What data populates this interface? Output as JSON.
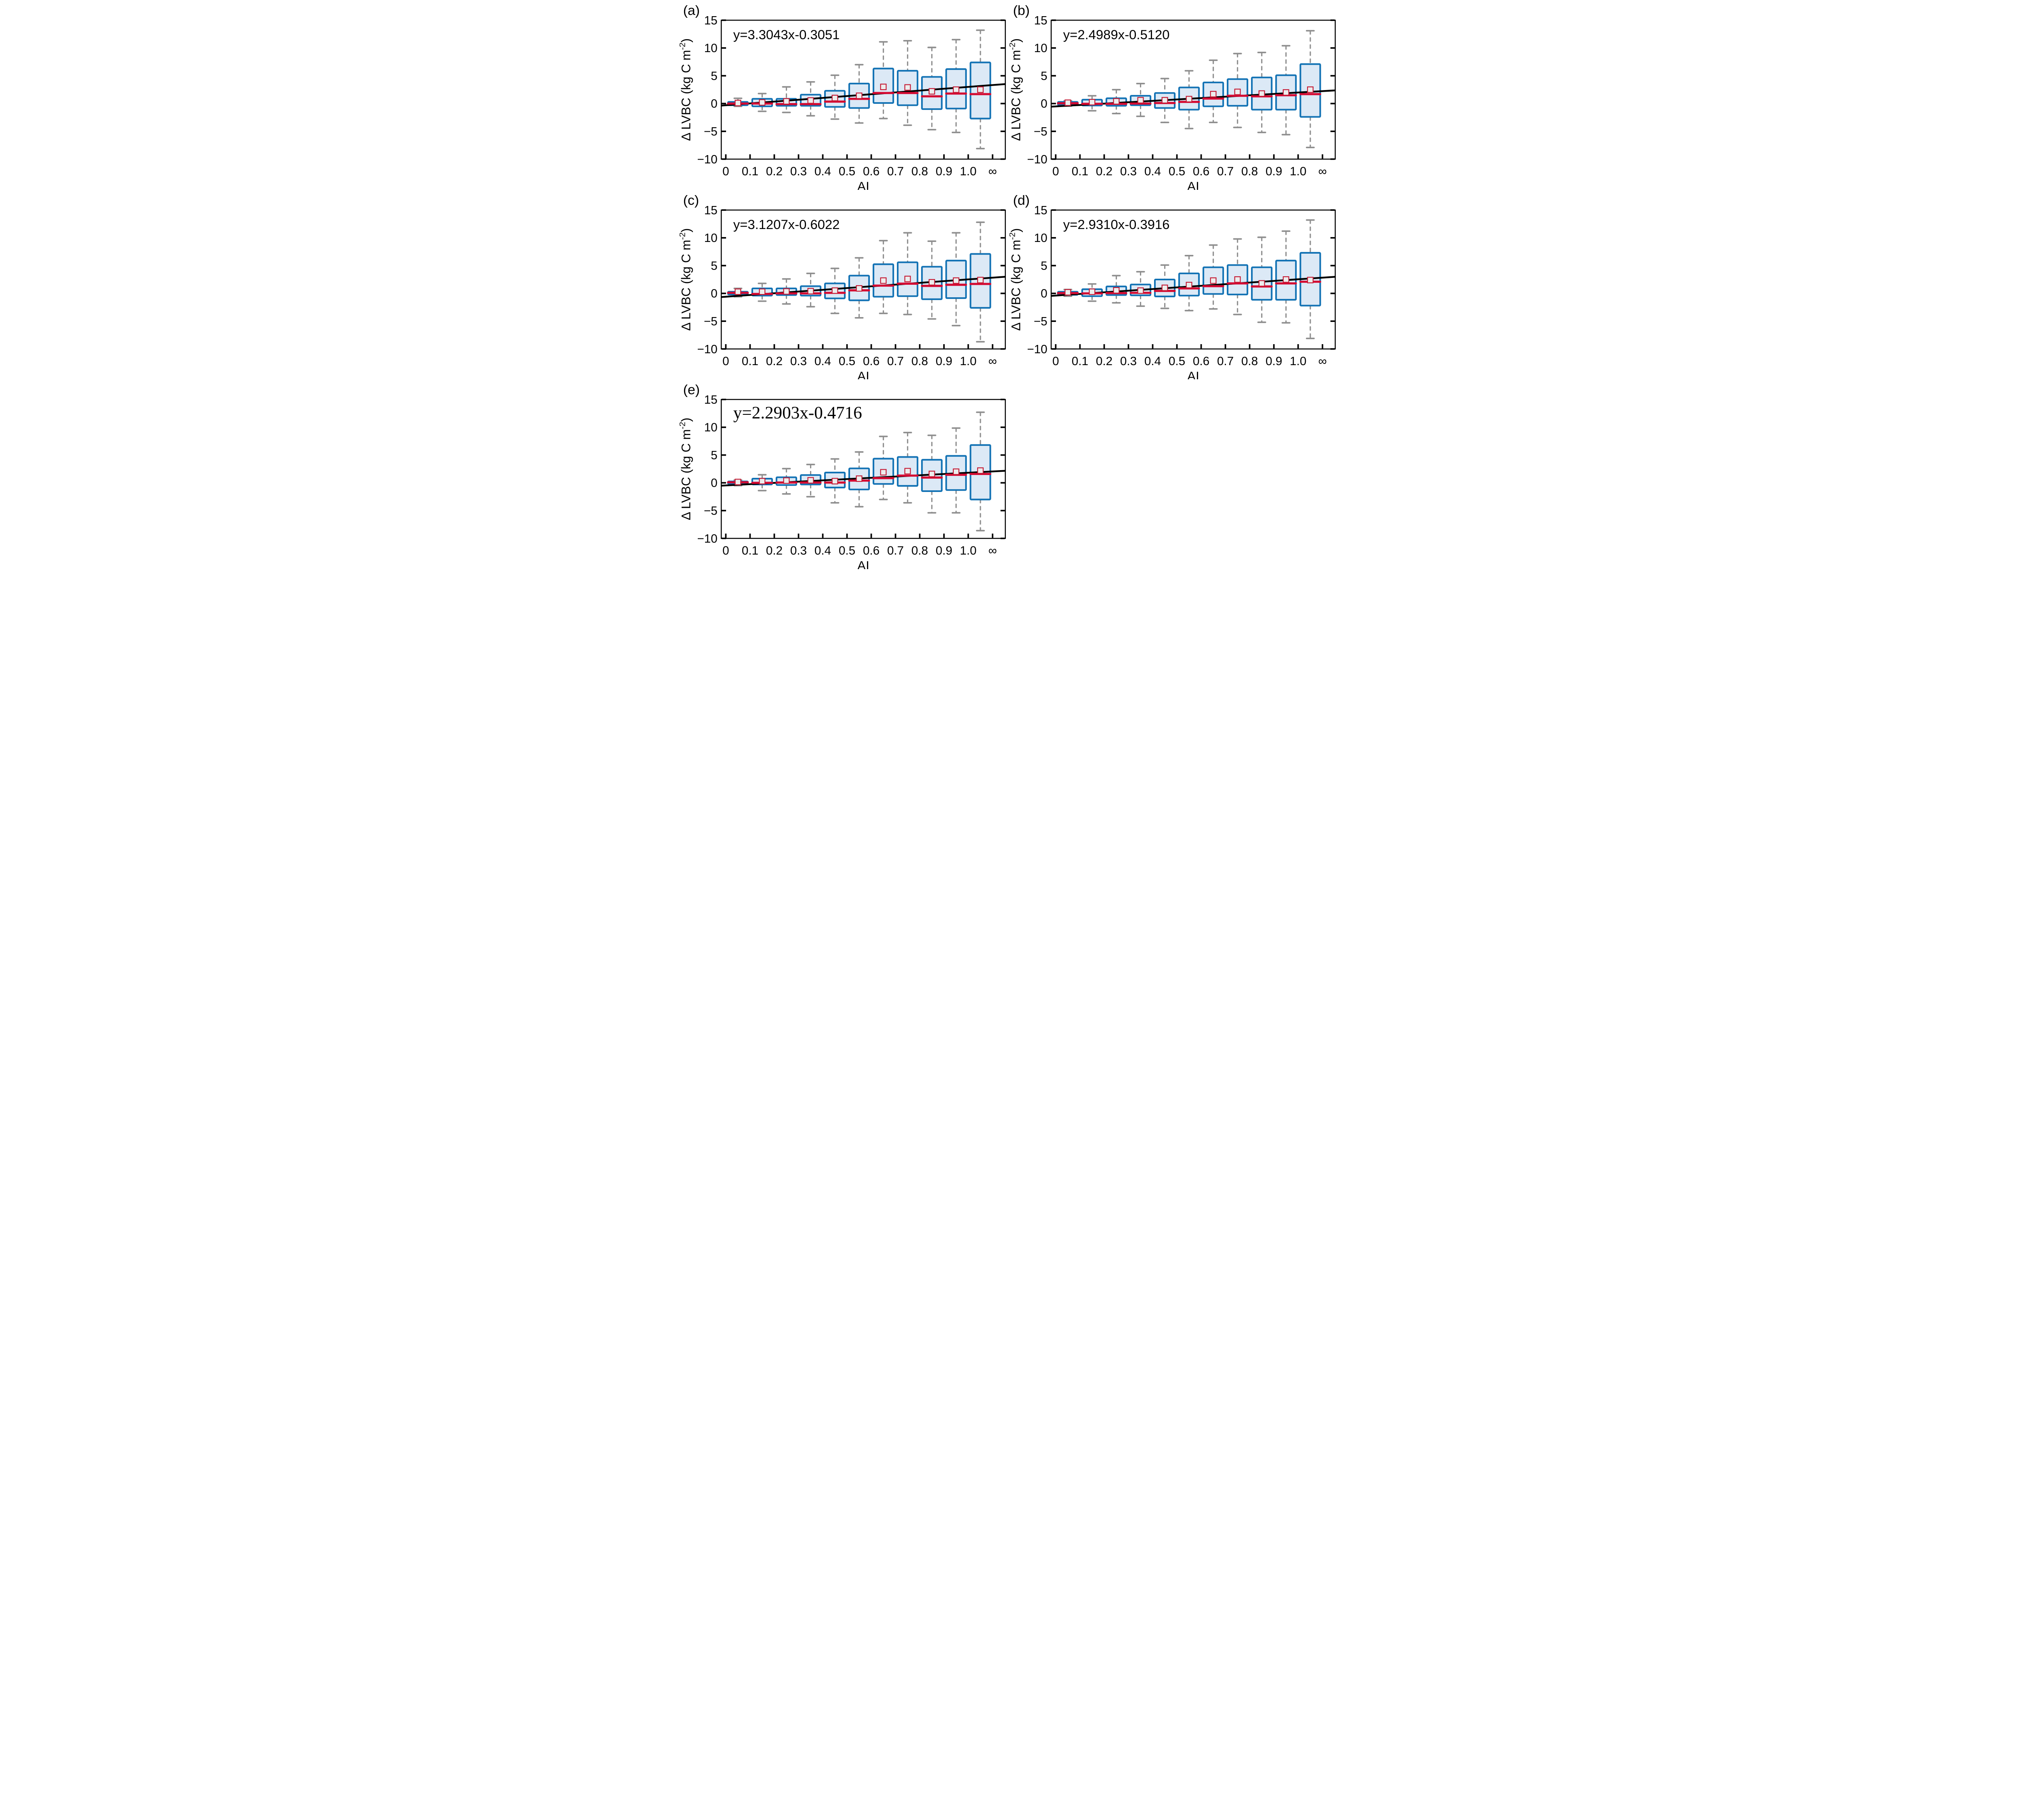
{
  "figure_title": "",
  "axes": {
    "xlabel": "AI",
    "ylabel_prefix": "Δ LVBC (kg C m",
    "ylabel_superscript": "-2",
    "ylabel_suffix": ")",
    "ylim": [
      -10,
      15
    ],
    "ytick_values": [
      15,
      10,
      5,
      0,
      -5,
      -10
    ],
    "ytick_labels": [
      "15",
      "10",
      "5",
      "0",
      "−5",
      "−10"
    ],
    "xtick_labels": [
      "0",
      "0.1",
      "0.2",
      "0.3",
      "0.4",
      "0.5",
      "0.6",
      "0.7",
      "0.8",
      "0.9",
      "1.0",
      "∞"
    ]
  },
  "colors": {
    "box_fill": "#dce9f6",
    "box_border": "#1272b4",
    "median": "#d40a32",
    "mean_fill": "#ededed",
    "mean_border": "#c41832",
    "whisker": "#8e8e8e",
    "regression_line": "#000000",
    "frame": "#000000",
    "text": "#000000"
  },
  "chart_data": [
    {
      "type": "box",
      "panel_label": "(a)",
      "equation": "y=3.3043x-0.3051",
      "equation_font": "sans",
      "regression": {
        "slope": 3.3043,
        "intercept": -0.3051
      },
      "xlabel": "AI",
      "ylabel": "Δ LVBC (kg C m⁻²)",
      "ylim": [
        -10,
        15
      ],
      "categories": [
        "0.05",
        "0.15",
        "0.25",
        "0.35",
        "0.45",
        "0.55",
        "0.65",
        "0.75",
        "0.85",
        "0.95",
        "∞"
      ],
      "boxes": [
        {
          "x": "0.05",
          "low": -0.5,
          "q1": -0.3,
          "median": 0.0,
          "q3": 0.3,
          "high": 0.95,
          "mean": 0.1
        },
        {
          "x": "0.15",
          "low": -1.4,
          "q1": -0.5,
          "median": 0.0,
          "q3": 0.85,
          "high": 1.8,
          "mean": 0.2
        },
        {
          "x": "0.25",
          "low": -1.6,
          "q1": -0.4,
          "median": -0.1,
          "q3": 0.85,
          "high": 3.0,
          "mean": 0.4
        },
        {
          "x": "0.35",
          "low": -2.2,
          "q1": -0.4,
          "median": -0.1,
          "q3": 1.6,
          "high": 3.9,
          "mean": 0.55
        },
        {
          "x": "0.45",
          "low": -2.8,
          "q1": -0.6,
          "median": 0.35,
          "q3": 2.3,
          "high": 5.1,
          "mean": 1.0
        },
        {
          "x": "0.55",
          "low": -3.5,
          "q1": -0.8,
          "median": 0.85,
          "q3": 3.6,
          "high": 7.0,
          "mean": 1.4
        },
        {
          "x": "0.65",
          "low": -2.7,
          "q1": 0.1,
          "median": 1.9,
          "q3": 6.3,
          "high": 11.1,
          "mean": 3.0
        },
        {
          "x": "0.75",
          "low": -3.9,
          "q1": -0.3,
          "median": 1.9,
          "q3": 5.9,
          "high": 11.3,
          "mean": 2.9
        },
        {
          "x": "0.85",
          "low": -4.7,
          "q1": -1.0,
          "median": 1.3,
          "q3": 4.8,
          "high": 10.1,
          "mean": 2.2
        },
        {
          "x": "0.95",
          "low": -5.2,
          "q1": -0.9,
          "median": 1.8,
          "q3": 6.2,
          "high": 11.5,
          "mean": 2.5
        },
        {
          "x": "∞",
          "low": -8.1,
          "q1": -2.7,
          "median": 1.7,
          "q3": 7.4,
          "high": 13.2,
          "mean": 2.5
        }
      ]
    },
    {
      "type": "box",
      "panel_label": "(b)",
      "equation": "y=2.4989x-0.5120",
      "equation_font": "sans",
      "regression": {
        "slope": 2.4989,
        "intercept": -0.512
      },
      "xlabel": "AI",
      "ylabel": "Δ LVBC (kg C m⁻²)",
      "ylim": [
        -10,
        15
      ],
      "categories": [
        "0.05",
        "0.15",
        "0.25",
        "0.35",
        "0.45",
        "0.55",
        "0.65",
        "0.75",
        "0.85",
        "0.95",
        "∞"
      ],
      "boxes": [
        {
          "x": "0.05",
          "low": -0.45,
          "q1": -0.25,
          "median": 0.05,
          "q3": 0.3,
          "high": 0.5,
          "mean": 0.15
        },
        {
          "x": "0.15",
          "low": -1.3,
          "q1": -0.35,
          "median": -0.05,
          "q3": 0.7,
          "high": 1.4,
          "mean": 0.25
        },
        {
          "x": "0.25",
          "low": -1.8,
          "q1": -0.4,
          "median": -0.05,
          "q3": 0.95,
          "high": 2.5,
          "mean": 0.4
        },
        {
          "x": "0.35",
          "low": -2.3,
          "q1": -0.3,
          "median": 0.0,
          "q3": 1.4,
          "high": 3.6,
          "mean": 0.6
        },
        {
          "x": "0.45",
          "low": -3.4,
          "q1": -0.8,
          "median": 0.1,
          "q3": 1.9,
          "high": 4.5,
          "mean": 0.6
        },
        {
          "x": "0.55",
          "low": -4.5,
          "q1": -1.1,
          "median": 0.3,
          "q3": 2.9,
          "high": 5.9,
          "mean": 0.8
        },
        {
          "x": "0.65",
          "low": -3.4,
          "q1": -0.5,
          "median": 0.9,
          "q3": 3.8,
          "high": 7.8,
          "mean": 1.7
        },
        {
          "x": "0.75",
          "low": -4.3,
          "q1": -0.4,
          "median": 1.4,
          "q3": 4.4,
          "high": 9.0,
          "mean": 2.1
        },
        {
          "x": "0.85",
          "low": -5.2,
          "q1": -1.1,
          "median": 1.3,
          "q3": 4.7,
          "high": 9.2,
          "mean": 1.8
        },
        {
          "x": "0.95",
          "low": -5.6,
          "q1": -1.1,
          "median": 1.5,
          "q3": 5.1,
          "high": 10.4,
          "mean": 2.0
        },
        {
          "x": "∞",
          "low": -7.9,
          "q1": -2.4,
          "median": 1.7,
          "q3": 7.1,
          "high": 13.1,
          "mean": 2.5
        }
      ]
    },
    {
      "type": "box",
      "panel_label": "(c)",
      "equation": "y=3.1207x-0.6022",
      "equation_font": "sans",
      "regression": {
        "slope": 3.1207,
        "intercept": -0.6022
      },
      "xlabel": "AI",
      "ylabel": "Δ LVBC (kg C m⁻²)",
      "ylim": [
        -10,
        15
      ],
      "categories": [
        "0.05",
        "0.15",
        "0.25",
        "0.35",
        "0.45",
        "0.55",
        "0.65",
        "0.75",
        "0.85",
        "0.95",
        "∞"
      ],
      "boxes": [
        {
          "x": "0.05",
          "low": -0.6,
          "q1": -0.2,
          "median": 0.1,
          "q3": 0.3,
          "high": 0.9,
          "mean": 0.3
        },
        {
          "x": "0.15",
          "low": -1.4,
          "q1": -0.4,
          "median": -0.1,
          "q3": 0.9,
          "high": 1.8,
          "mean": 0.3
        },
        {
          "x": "0.25",
          "low": -1.9,
          "q1": -0.3,
          "median": 0.0,
          "q3": 0.9,
          "high": 2.6,
          "mean": 0.35
        },
        {
          "x": "0.35",
          "low": -2.4,
          "q1": -0.4,
          "median": 0.0,
          "q3": 1.3,
          "high": 3.6,
          "mean": 0.4
        },
        {
          "x": "0.45",
          "low": -3.6,
          "q1": -0.9,
          "median": 0.1,
          "q3": 1.8,
          "high": 4.5,
          "mean": 0.5
        },
        {
          "x": "0.55",
          "low": -4.4,
          "q1": -1.25,
          "median": 0.55,
          "q3": 3.2,
          "high": 6.4,
          "mean": 0.9
        },
        {
          "x": "0.65",
          "low": -3.6,
          "q1": -0.6,
          "median": 1.4,
          "q3": 5.25,
          "high": 9.5,
          "mean": 2.3
        },
        {
          "x": "0.75",
          "low": -3.8,
          "q1": -0.5,
          "median": 1.75,
          "q3": 5.6,
          "high": 10.9,
          "mean": 2.6
        },
        {
          "x": "0.85",
          "low": -4.6,
          "q1": -1.05,
          "median": 1.35,
          "q3": 4.8,
          "high": 9.4,
          "mean": 2.0
        },
        {
          "x": "0.95",
          "low": -5.8,
          "q1": -0.85,
          "median": 1.55,
          "q3": 5.9,
          "high": 10.9,
          "mean": 2.3
        },
        {
          "x": "∞",
          "low": -8.7,
          "q1": -2.6,
          "median": 1.7,
          "q3": 7.1,
          "high": 12.8,
          "mean": 2.4
        }
      ]
    },
    {
      "type": "box",
      "panel_label": "(d)",
      "equation": "y=2.9310x-0.3916",
      "equation_font": "sans",
      "regression": {
        "slope": 2.931,
        "intercept": -0.3916
      },
      "xlabel": "AI",
      "ylabel": "Δ LVBC (kg C m⁻²)",
      "ylim": [
        -10,
        15
      ],
      "categories": [
        "0.05",
        "0.15",
        "0.25",
        "0.35",
        "0.45",
        "0.55",
        "0.65",
        "0.75",
        "0.85",
        "0.95",
        "∞"
      ],
      "boxes": [
        {
          "x": "0.05",
          "low": -0.5,
          "q1": -0.25,
          "median": 0.05,
          "q3": 0.3,
          "high": 0.7,
          "mean": 0.2
        },
        {
          "x": "0.15",
          "low": -1.4,
          "q1": -0.5,
          "median": 0.0,
          "q3": 0.75,
          "high": 1.7,
          "mean": 0.3
        },
        {
          "x": "0.25",
          "low": -1.7,
          "q1": -0.3,
          "median": 0.05,
          "q3": 1.25,
          "high": 3.2,
          "mean": 0.55
        },
        {
          "x": "0.35",
          "low": -2.3,
          "q1": -0.35,
          "median": 0.1,
          "q3": 1.6,
          "high": 3.9,
          "mean": 0.5
        },
        {
          "x": "0.45",
          "low": -2.7,
          "q1": -0.55,
          "median": 0.45,
          "q3": 2.5,
          "high": 5.1,
          "mean": 1.0
        },
        {
          "x": "0.55",
          "low": -3.1,
          "q1": -0.4,
          "median": 0.9,
          "q3": 3.6,
          "high": 6.8,
          "mean": 1.5
        },
        {
          "x": "0.65",
          "low": -2.8,
          "q1": -0.1,
          "median": 1.3,
          "q3": 4.7,
          "high": 8.7,
          "mean": 2.3
        },
        {
          "x": "0.75",
          "low": -3.8,
          "q1": -0.2,
          "median": 1.8,
          "q3": 5.1,
          "high": 9.8,
          "mean": 2.5
        },
        {
          "x": "0.85",
          "low": -5.2,
          "q1": -1.15,
          "median": 1.25,
          "q3": 4.7,
          "high": 10.1,
          "mean": 1.8
        },
        {
          "x": "0.95",
          "low": -5.3,
          "q1": -1.15,
          "median": 1.8,
          "q3": 5.9,
          "high": 11.2,
          "mean": 2.5
        },
        {
          "x": "∞",
          "low": -8.1,
          "q1": -2.2,
          "median": 2.1,
          "q3": 7.3,
          "high": 13.2,
          "mean": 2.4
        }
      ]
    },
    {
      "type": "box",
      "panel_label": "(e)",
      "equation": "y=2.2903x-0.4716",
      "equation_font": "serif",
      "regression": {
        "slope": 2.2903,
        "intercept": -0.4716
      },
      "xlabel": "AI",
      "ylabel": "Δ LVBC (kg C m⁻²)",
      "ylim": [
        -10,
        15
      ],
      "categories": [
        "0.05",
        "0.15",
        "0.25",
        "0.35",
        "0.45",
        "0.55",
        "0.65",
        "0.75",
        "0.85",
        "0.95",
        "∞"
      ],
      "boxes": [
        {
          "x": "0.05",
          "low": -0.5,
          "q1": -0.2,
          "median": 0.1,
          "q3": 0.25,
          "high": 0.5,
          "mean": 0.15
        },
        {
          "x": "0.15",
          "low": -1.4,
          "q1": -0.3,
          "median": 0.0,
          "q3": 0.75,
          "high": 1.45,
          "mean": 0.3
        },
        {
          "x": "0.25",
          "low": -2.0,
          "q1": -0.4,
          "median": 0.05,
          "q3": 1.0,
          "high": 2.55,
          "mean": 0.4
        },
        {
          "x": "0.35",
          "low": -2.5,
          "q1": -0.3,
          "median": 0.05,
          "q3": 1.4,
          "high": 3.3,
          "mean": 0.45
        },
        {
          "x": "0.45",
          "low": -3.6,
          "q1": -0.85,
          "median": 0.05,
          "q3": 1.85,
          "high": 4.3,
          "mean": 0.3
        },
        {
          "x": "0.55",
          "low": -4.3,
          "q1": -1.2,
          "median": 0.4,
          "q3": 2.6,
          "high": 5.55,
          "mean": 0.75
        },
        {
          "x": "0.65",
          "low": -3.0,
          "q1": -0.2,
          "median": 0.85,
          "q3": 4.35,
          "high": 8.35,
          "mean": 1.9
        },
        {
          "x": "0.75",
          "low": -3.6,
          "q1": -0.55,
          "median": 1.3,
          "q3": 4.65,
          "high": 9.05,
          "mean": 2.1
        },
        {
          "x": "0.85",
          "low": -5.4,
          "q1": -1.5,
          "median": 0.95,
          "q3": 4.15,
          "high": 8.55,
          "mean": 1.6
        },
        {
          "x": "0.95",
          "low": -5.4,
          "q1": -1.3,
          "median": 1.45,
          "q3": 4.85,
          "high": 9.85,
          "mean": 2.0
        },
        {
          "x": "∞",
          "low": -8.6,
          "q1": -3.0,
          "median": 1.6,
          "q3": 6.8,
          "high": 12.7,
          "mean": 2.2
        }
      ]
    }
  ]
}
